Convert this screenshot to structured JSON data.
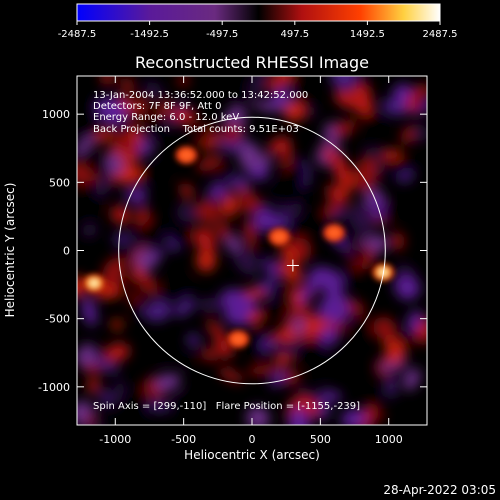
{
  "chart_data": {
    "type": "heatmap",
    "title": "Reconstructed RHESSI Image",
    "xlabel": "Heliocentric X (arcsec)",
    "ylabel": "Heliocentric Y (arcsec)",
    "xlim": [
      -1280,
      1280
    ],
    "ylim": [
      -1280,
      1280
    ],
    "x_ticks": [
      -1000,
      -500,
      0,
      500,
      1000
    ],
    "y_ticks": [
      -1000,
      -500,
      0,
      500,
      1000
    ],
    "colorbar": {
      "min": -2487.5,
      "max": 2487.5,
      "tick_values": [
        -2487.5,
        -1492.5,
        -497.5,
        497.5,
        1492.5,
        2487.5
      ],
      "tick_labels": [
        "-2487.5",
        "-1492.5",
        "-497.5",
        "497.5",
        "1492.5",
        "2487.5"
      ],
      "colors": [
        "#0000ff",
        "#5a1a9a",
        "#6a2a80",
        "#000000",
        "#b01010",
        "#ff4000",
        "#ffd040",
        "#ffffff"
      ]
    },
    "annotations": [
      "13-Jan-2004 13:36:52.000 to 13:42:52.000",
      "Detectors: 7F 8F 9F, Att 0",
      "Energy Range: 6.0 - 12.0 keV",
      "Back Projection    Total counts: 9.51E+03",
      "Spin Axis = [299,-110]   Flare Position = [-1155,-239]"
    ],
    "solar_limb": {
      "center": [
        0,
        0
      ],
      "radius": 975
    },
    "spin_axis_marker": [
      299,
      -110
    ],
    "bright_sources": [
      {
        "x": -1155,
        "y": -239,
        "value": 2300
      },
      {
        "x": 960,
        "y": -160,
        "value": 2100
      },
      {
        "x": 200,
        "y": 100,
        "value": 1600
      },
      {
        "x": 600,
        "y": 130,
        "value": 1400
      },
      {
        "x": -100,
        "y": -650,
        "value": 1200
      },
      {
        "x": -480,
        "y": 700,
        "value": 1100
      }
    ]
  },
  "footer": {
    "timestamp": "28-Apr-2022 03:05"
  }
}
